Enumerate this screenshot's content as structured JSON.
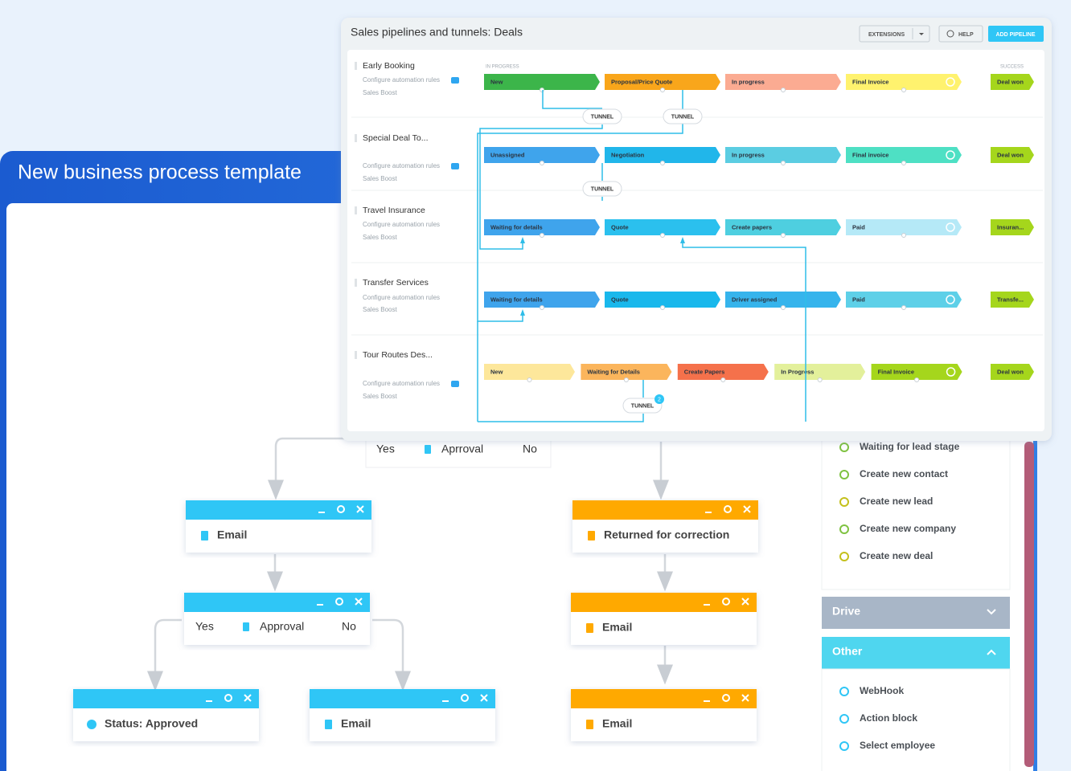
{
  "header": {
    "title": "New business process template"
  },
  "pipelines": {
    "title": "Sales pipelines and tunnels: Deals",
    "buttons": {
      "extensions": "EXTENSIONS",
      "help": "HELP",
      "add": "ADD PIPELINE"
    },
    "in_progress_label": "IN PROGRESS",
    "success_label": "SUCCESS",
    "rows": [
      {
        "name": "Early Booking",
        "automation": "Configure automation rules",
        "boost": "Sales Boost",
        "stages": [
          {
            "label": "New",
            "color": "#3cb54a"
          },
          {
            "label": "Proposal/Price Quote",
            "color": "#f9a61b"
          },
          {
            "label": "In progress",
            "color": "#fbab92"
          },
          {
            "label": "Final Invoice",
            "color": "#fff26e"
          }
        ],
        "won": {
          "label": "Deal won",
          "color": "#a5d61c"
        }
      },
      {
        "name": "Special Deal To...",
        "automation": "Configure automation rules",
        "boost": "Sales Boost",
        "stages": [
          {
            "label": "Unassigned",
            "color": "#3fa4ec"
          },
          {
            "label": "Negotiation",
            "color": "#21b6ea"
          },
          {
            "label": "In progress",
            "color": "#5bcde2"
          },
          {
            "label": "Final invoice",
            "color": "#4ee0c4"
          }
        ],
        "won": {
          "label": "Deal won",
          "color": "#a5d61c"
        }
      },
      {
        "name": "Travel Insurance",
        "automation": "Configure automation rules",
        "boost": "Sales Boost",
        "stages": [
          {
            "label": "Waiting for details",
            "color": "#3fa4ec"
          },
          {
            "label": "Quote",
            "color": "#2bc0ee"
          },
          {
            "label": "Create papers",
            "color": "#4ecfe0"
          },
          {
            "label": "Paid",
            "color": "#b5e9f7"
          }
        ],
        "won": {
          "label": "Insuran...",
          "color": "#a5d61c"
        }
      },
      {
        "name": "Transfer Services",
        "automation": "Configure automation rules",
        "boost": "Sales Boost",
        "stages": [
          {
            "label": "Waiting for details",
            "color": "#3fa4ec"
          },
          {
            "label": "Quote",
            "color": "#19b8ec"
          },
          {
            "label": "Driver assigned",
            "color": "#36b4ec"
          },
          {
            "label": "Paid",
            "color": "#5ed0e8"
          }
        ],
        "won": {
          "label": "Transfe...",
          "color": "#a5d61c"
        }
      },
      {
        "name": "Tour Routes Des...",
        "automation": "Configure automation rules",
        "boost": "Sales Boost",
        "stages": [
          {
            "label": "New",
            "color": "#fde79b"
          },
          {
            "label": "Waiting for Details",
            "color": "#fbb55c"
          },
          {
            "label": "Create Papers",
            "color": "#f5714b"
          },
          {
            "label": "In Progress",
            "color": "#e3f09b"
          },
          {
            "label": "Final Invoice",
            "color": "#a5d61c"
          }
        ],
        "won": {
          "label": "Deal won",
          "color": "#a5d61c"
        }
      }
    ],
    "tunnels": [
      "TUNNEL",
      "TUNNEL",
      "TUNNEL",
      "TUNNEL"
    ],
    "badge": "2"
  },
  "workflow": {
    "conditions": [
      {
        "yes": "Yes",
        "label": "Aprroval",
        "no": "No"
      },
      {
        "yes": "Yes",
        "label": "Approval",
        "no": "No"
      }
    ],
    "blocks": [
      {
        "title": "Email",
        "color": "#2fc6f6"
      },
      {
        "title": "Returned for correction",
        "color": "#ffa900"
      },
      {
        "title": "Email",
        "color": "#ffa900"
      },
      {
        "title": "Status: Approved",
        "color": "#2fc6f6"
      },
      {
        "title": "Email",
        "color": "#2fc6f6"
      },
      {
        "title": "Email",
        "color": "#ffa900"
      }
    ]
  },
  "sidebar": {
    "items": [
      "Waiting for lead stage",
      "Create new contact",
      "Create new lead",
      "Create new company",
      "Create new deal"
    ],
    "drive": "Drive",
    "other": "Other",
    "other_items": [
      "WebHook",
      "Action block",
      "Select employee"
    ]
  }
}
